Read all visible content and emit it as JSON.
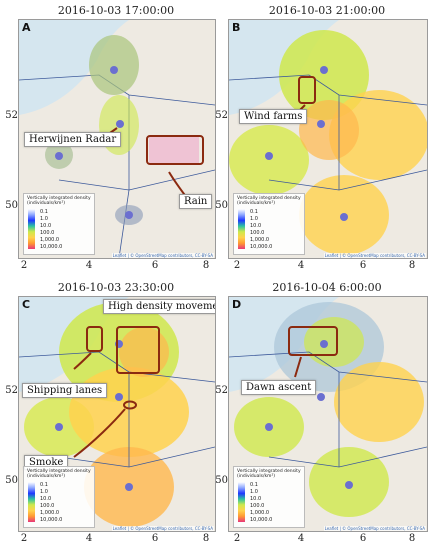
{
  "panels": [
    {
      "letter": "A",
      "timestamp": "2016-10-03 17:00:00",
      "callouts": [
        "Herwijnen Radar",
        "Rain"
      ],
      "y_ticks": [
        "52",
        "50"
      ],
      "x_ticks": [
        "2",
        "4",
        "6",
        "8"
      ]
    },
    {
      "letter": "B",
      "timestamp": "2016-10-03 21:00:00",
      "callouts": [
        "Wind farms"
      ],
      "y_ticks": [
        "52",
        "50"
      ],
      "x_ticks": [
        "2",
        "4",
        "6",
        "8"
      ]
    },
    {
      "letter": "C",
      "timestamp": "2016-10-03 23:30:00",
      "callouts": [
        "High density movement",
        "Shipping lanes",
        "Smoke"
      ],
      "y_ticks": [
        "52",
        "50"
      ],
      "x_ticks": [
        "2",
        "4",
        "6",
        "8"
      ]
    },
    {
      "letter": "D",
      "timestamp": "2016-10-04 6:00:00",
      "callouts": [
        "Dawn ascent"
      ],
      "y_ticks": [
        "52",
        "50"
      ],
      "x_ticks": [
        "2",
        "4",
        "6",
        "8"
      ]
    }
  ],
  "legend": {
    "title": "Vertically integrated density (individuals/km²)",
    "levels": [
      "0.1",
      "1.0",
      "10.0",
      "100.0",
      "1,000.0",
      "10,000.0"
    ]
  },
  "attribution": "Leaflet | © OpenStreetMap contributors, CC-BY-SA",
  "colors": {
    "sea": "#d5e6ef",
    "land": "#eeeae2",
    "low_density": "#cfe84c",
    "mid_density": "#ffd24d",
    "high_density": "#ff9933",
    "callout_box": "#8b2a10"
  }
}
